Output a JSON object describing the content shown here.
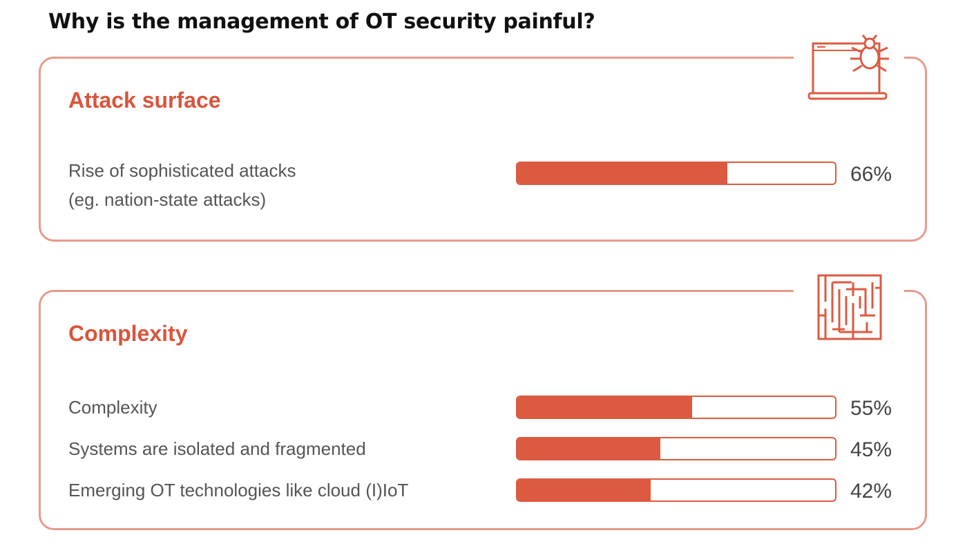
{
  "header": {
    "title": "Why is the management of OT security painful?"
  },
  "colors": {
    "accent": "#dc5a40",
    "border": "#e79b8a",
    "heading": "#d9553b"
  },
  "icons": {
    "attack": "laptop-bug-icon",
    "complexity": "maze-icon"
  },
  "chart_data": [
    {
      "type": "bar",
      "title": "Attack surface",
      "categories": [
        "Rise of sophisticated attacks\n(eg. nation-state attacks)"
      ],
      "values": [
        66
      ],
      "labels": [
        "66%"
      ],
      "ylim": [
        0,
        100
      ]
    },
    {
      "type": "bar",
      "title": "Complexity",
      "categories": [
        "Complexity",
        "Systems are isolated and fragmented",
        "Emerging OT technologies like cloud (I)IoT"
      ],
      "values": [
        55,
        45,
        42
      ],
      "labels": [
        "55%",
        "45%",
        "42%"
      ],
      "ylim": [
        0,
        100
      ]
    }
  ]
}
